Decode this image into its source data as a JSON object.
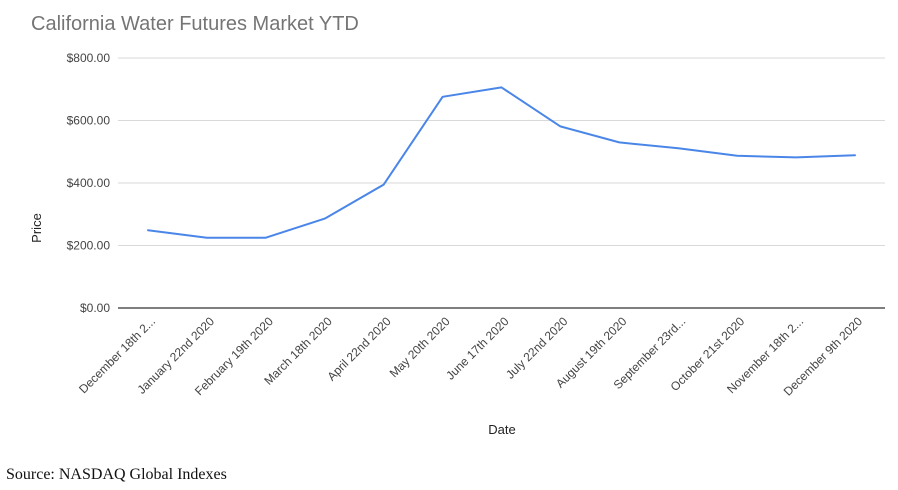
{
  "chart_data": {
    "type": "line",
    "title": "California Water Futures Market YTD",
    "xlabel": "Date",
    "ylabel": "Price",
    "ylim": [
      0,
      800
    ],
    "yticks": [
      "$0.00",
      "$200.00",
      "$400.00",
      "$600.00",
      "$800.00"
    ],
    "categories": [
      "December 18th 2...",
      "January 22nd 2020",
      "February 19th 2020",
      "March 18th 2020",
      "April 22nd 2020",
      "May 20th 2020",
      "June 17th 2020",
      "July 22nd 2020",
      "August 19th 2020",
      "September 23rd...",
      "October 21st 2020",
      "November 18th 2...",
      "December 9th 2020"
    ],
    "series": [
      {
        "values": [
          249,
          225,
          225,
          286,
          395,
          676,
          706,
          581,
          530,
          511,
          487,
          482,
          489
        ],
        "color": "#4a86e8"
      }
    ],
    "grid": true,
    "legend": "none"
  },
  "source": "Source: NASDAQ Global Indexes"
}
